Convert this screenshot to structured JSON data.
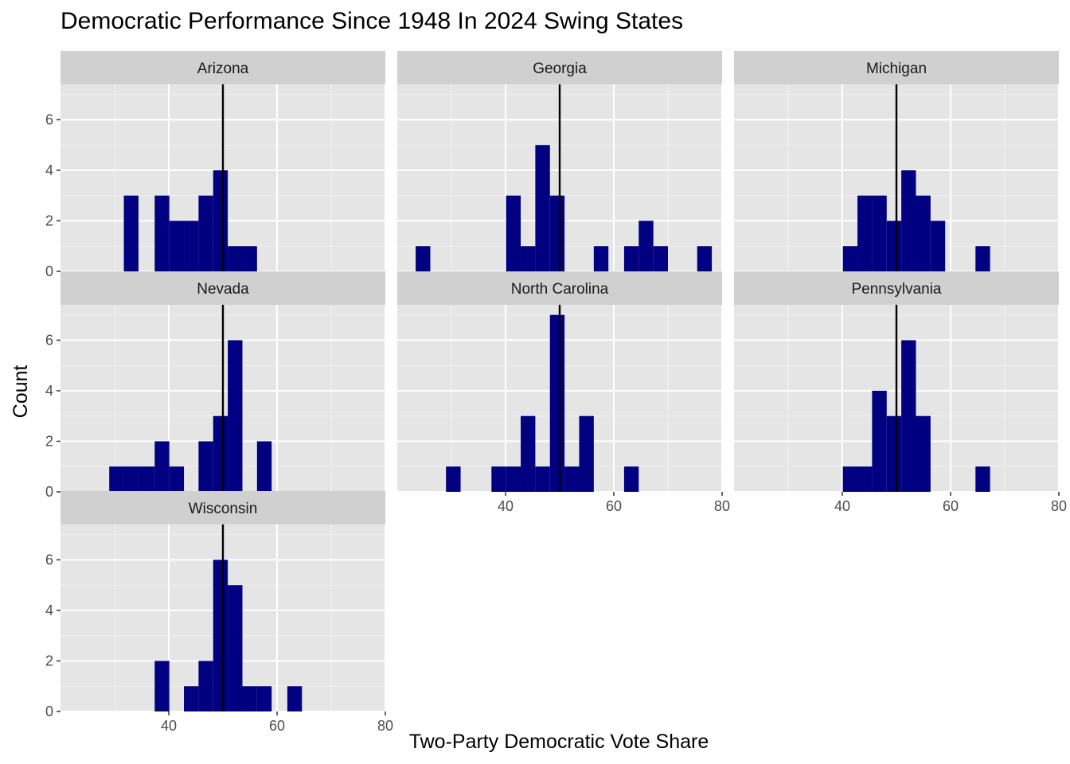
{
  "chart_data": {
    "type": "histogram",
    "title": "Democratic Performance Since 1948 In 2024 Swing States",
    "xlabel": "Two-Party Democratic Vote Share",
    "ylabel": "Count",
    "xlim": [
      20,
      80
    ],
    "ylim": [
      0,
      7.4
    ],
    "x_ticks": [
      40,
      60,
      80
    ],
    "y_ticks": [
      0,
      2,
      4,
      6
    ],
    "reference_line_x": 50,
    "bar_color": "#000080",
    "panel_background": "#e5e5e5",
    "strip_background": "#d0d0d0",
    "grid": true,
    "facets": [
      {
        "name": "Arizona",
        "bins": [
          {
            "x0": 31.7,
            "x1": 34.4,
            "count": 3
          },
          {
            "x0": 37.4,
            "x1": 40.1,
            "count": 3
          },
          {
            "x0": 40.1,
            "x1": 42.8,
            "count": 2
          },
          {
            "x0": 42.8,
            "x1": 45.5,
            "count": 2
          },
          {
            "x0": 45.5,
            "x1": 48.2,
            "count": 3
          },
          {
            "x0": 48.2,
            "x1": 50.9,
            "count": 4
          },
          {
            "x0": 50.9,
            "x1": 53.6,
            "count": 1
          },
          {
            "x0": 53.6,
            "x1": 56.3,
            "count": 1
          }
        ]
      },
      {
        "name": "Georgia",
        "bins": [
          {
            "x0": 23.4,
            "x1": 26.1,
            "count": 1
          },
          {
            "x0": 40.1,
            "x1": 42.8,
            "count": 3
          },
          {
            "x0": 42.8,
            "x1": 45.5,
            "count": 1
          },
          {
            "x0": 45.5,
            "x1": 48.2,
            "count": 5
          },
          {
            "x0": 48.2,
            "x1": 50.9,
            "count": 3
          },
          {
            "x0": 56.3,
            "x1": 59.0,
            "count": 1
          },
          {
            "x0": 61.9,
            "x1": 64.6,
            "count": 1
          },
          {
            "x0": 64.6,
            "x1": 67.3,
            "count": 2
          },
          {
            "x0": 67.3,
            "x1": 70.0,
            "count": 1
          },
          {
            "x0": 75.4,
            "x1": 78.1,
            "count": 1
          }
        ]
      },
      {
        "name": "Michigan",
        "bins": [
          {
            "x0": 40.1,
            "x1": 42.8,
            "count": 1
          },
          {
            "x0": 42.8,
            "x1": 45.5,
            "count": 3
          },
          {
            "x0": 45.5,
            "x1": 48.2,
            "count": 3
          },
          {
            "x0": 48.2,
            "x1": 50.9,
            "count": 2
          },
          {
            "x0": 50.9,
            "x1": 53.6,
            "count": 4
          },
          {
            "x0": 53.6,
            "x1": 56.3,
            "count": 3
          },
          {
            "x0": 56.3,
            "x1": 59.0,
            "count": 2
          },
          {
            "x0": 64.6,
            "x1": 67.3,
            "count": 1
          }
        ]
      },
      {
        "name": "Nevada",
        "bins": [
          {
            "x0": 29.0,
            "x1": 31.7,
            "count": 1
          },
          {
            "x0": 31.7,
            "x1": 34.4,
            "count": 1
          },
          {
            "x0": 34.4,
            "x1": 37.4,
            "count": 1
          },
          {
            "x0": 37.4,
            "x1": 40.1,
            "count": 2
          },
          {
            "x0": 40.1,
            "x1": 42.8,
            "count": 1
          },
          {
            "x0": 45.5,
            "x1": 48.2,
            "count": 2
          },
          {
            "x0": 48.2,
            "x1": 50.9,
            "count": 3
          },
          {
            "x0": 50.9,
            "x1": 53.6,
            "count": 6
          },
          {
            "x0": 56.3,
            "x1": 59.0,
            "count": 2
          }
        ]
      },
      {
        "name": "North Carolina",
        "bins": [
          {
            "x0": 29.0,
            "x1": 31.7,
            "count": 1
          },
          {
            "x0": 37.4,
            "x1": 40.1,
            "count": 1
          },
          {
            "x0": 40.1,
            "x1": 42.8,
            "count": 1
          },
          {
            "x0": 42.8,
            "x1": 45.5,
            "count": 3
          },
          {
            "x0": 45.5,
            "x1": 48.2,
            "count": 1
          },
          {
            "x0": 48.2,
            "x1": 50.9,
            "count": 7
          },
          {
            "x0": 50.9,
            "x1": 53.6,
            "count": 1
          },
          {
            "x0": 53.6,
            "x1": 56.3,
            "count": 3
          },
          {
            "x0": 61.9,
            "x1": 64.6,
            "count": 1
          }
        ]
      },
      {
        "name": "Pennsylvania",
        "bins": [
          {
            "x0": 40.1,
            "x1": 42.8,
            "count": 1
          },
          {
            "x0": 42.8,
            "x1": 45.5,
            "count": 1
          },
          {
            "x0": 45.5,
            "x1": 48.2,
            "count": 4
          },
          {
            "x0": 48.2,
            "x1": 50.9,
            "count": 3
          },
          {
            "x0": 50.9,
            "x1": 53.6,
            "count": 6
          },
          {
            "x0": 53.6,
            "x1": 56.3,
            "count": 3
          },
          {
            "x0": 64.6,
            "x1": 67.3,
            "count": 1
          }
        ]
      },
      {
        "name": "Wisconsin",
        "bins": [
          {
            "x0": 37.4,
            "x1": 40.1,
            "count": 2
          },
          {
            "x0": 42.8,
            "x1": 45.5,
            "count": 1
          },
          {
            "x0": 45.5,
            "x1": 48.2,
            "count": 2
          },
          {
            "x0": 48.2,
            "x1": 50.9,
            "count": 6
          },
          {
            "x0": 50.9,
            "x1": 53.6,
            "count": 5
          },
          {
            "x0": 53.6,
            "x1": 56.3,
            "count": 1
          },
          {
            "x0": 56.3,
            "x1": 59.0,
            "count": 1
          },
          {
            "x0": 61.9,
            "x1": 64.6,
            "count": 1
          }
        ]
      }
    ]
  }
}
